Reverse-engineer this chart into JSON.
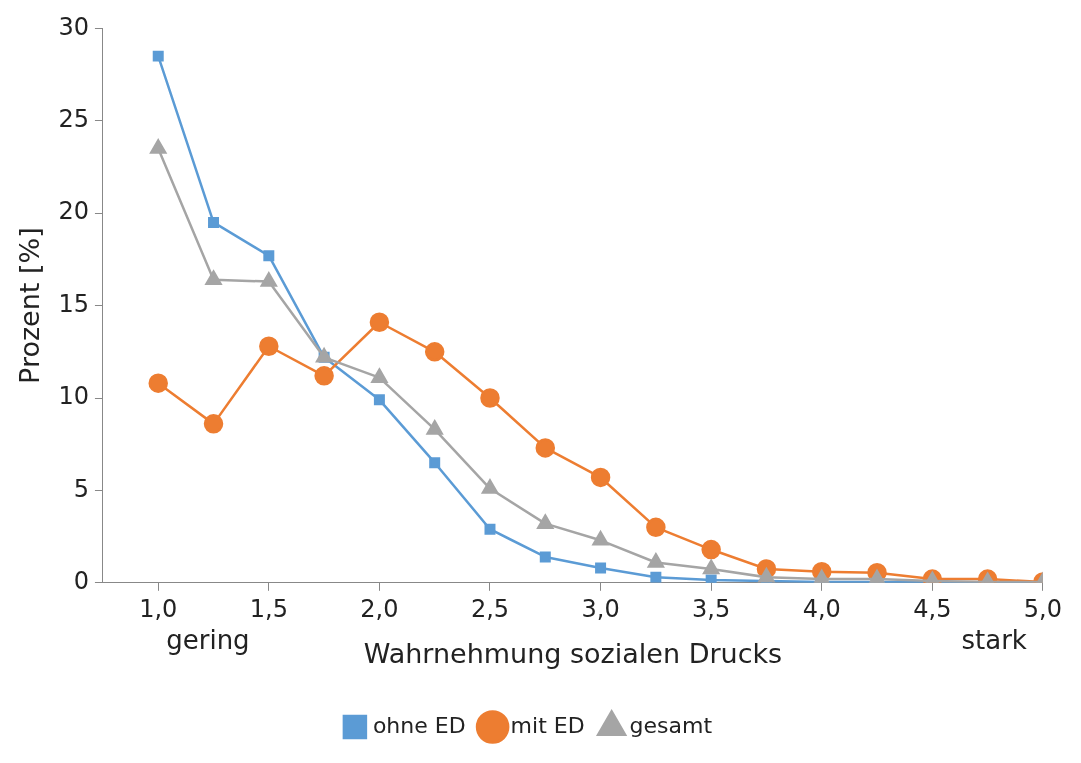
{
  "chart_data": {
    "type": "line",
    "xlabel": "Wahrnehmung sozialen Drucks",
    "ylabel": "Prozent [%]",
    "x": [
      1.0,
      1.25,
      1.5,
      1.75,
      2.0,
      2.25,
      2.5,
      2.75,
      3.0,
      3.25,
      3.5,
      3.75,
      4.0,
      4.25,
      4.5,
      4.75,
      5.0
    ],
    "series": [
      {
        "name": "ohne ED",
        "color": "#5b9bd5",
        "marker": "square",
        "values": [
          28.5,
          19.5,
          17.7,
          12.2,
          9.9,
          6.5,
          2.9,
          1.4,
          0.8,
          0.3,
          0.15,
          0.1,
          0.05,
          0.05,
          null,
          null,
          0
        ]
      },
      {
        "name": "mit ED",
        "color": "#ed7d31",
        "marker": "circle",
        "values": [
          10.8,
          8.6,
          12.8,
          11.2,
          14.1,
          12.5,
          10.0,
          7.3,
          5.7,
          3.0,
          1.8,
          0.75,
          0.6,
          0.55,
          0.2,
          0.2,
          0.05
        ]
      },
      {
        "name": "gesamt",
        "color": "#a5a5a5",
        "marker": "triangle",
        "values": [
          23.5,
          16.4,
          16.3,
          12.2,
          11.1,
          8.3,
          5.1,
          3.2,
          2.3,
          1.1,
          0.75,
          0.3,
          0.2,
          0.2,
          0.1,
          0.05,
          0.05
        ]
      }
    ],
    "xlim": [
      0.75,
      5.0
    ],
    "xticks": [
      {
        "value": 1,
        "label": "1,0"
      },
      {
        "value": 1.5,
        "label": "1,5"
      },
      {
        "value": 2,
        "label": "2,0"
      },
      {
        "value": 2.5,
        "label": "2,5"
      },
      {
        "value": 3,
        "label": "3,0"
      },
      {
        "value": 3.5,
        "label": "3,5"
      },
      {
        "value": 4,
        "label": "4,0"
      },
      {
        "value": 4.5,
        "label": "4,5"
      },
      {
        "value": 5,
        "label": "5,0"
      }
    ],
    "ylim": [
      0,
      30
    ],
    "yticks": [
      0,
      5,
      10,
      15,
      20,
      25,
      30
    ],
    "annotations": [
      "gering",
      "stark"
    ],
    "grid": false,
    "legend": "bottom",
    "line_style": "solid"
  }
}
